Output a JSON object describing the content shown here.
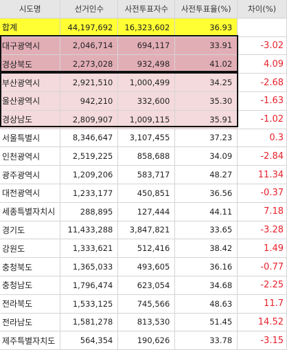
{
  "headers": [
    "시도명",
    "선거인수",
    "사전투표자수",
    "사전투표율(%)",
    "차이(%)"
  ],
  "rows": [
    {
      "name": "합계",
      "voters": "44,197,692",
      "early": "16,323,602",
      "rate": "36.93",
      "diff": "",
      "group": "total"
    },
    {
      "name": "대구광역시",
      "voters": "2,046,714",
      "early": "694,117",
      "rate": "33.91",
      "diff": "-3.02",
      "group": "g1"
    },
    {
      "name": "경상북도",
      "voters": "2,273,028",
      "early": "932,498",
      "rate": "41.02",
      "diff": "4.09",
      "group": "g1"
    },
    {
      "name": "부산광역시",
      "voters": "2,921,510",
      "early": "1,000,499",
      "rate": "34.25",
      "diff": "-2.68",
      "group": "g2"
    },
    {
      "name": "울산광역시",
      "voters": "942,210",
      "early": "332,600",
      "rate": "35.30",
      "diff": "-1.63",
      "group": "g2"
    },
    {
      "name": "경상남도",
      "voters": "2,809,907",
      "early": "1,009,115",
      "rate": "35.91",
      "diff": "-1.02",
      "group": "g2"
    },
    {
      "name": "서울특별시",
      "voters": "8,346,647",
      "early": "3,107,455",
      "rate": "37.23",
      "diff": "0.3",
      "group": ""
    },
    {
      "name": "인천광역시",
      "voters": "2,519,225",
      "early": "858,688",
      "rate": "34.09",
      "diff": "-2.84",
      "group": ""
    },
    {
      "name": "광주광역시",
      "voters": "1,209,206",
      "early": "583,717",
      "rate": "48.27",
      "diff": "11.34",
      "group": ""
    },
    {
      "name": "대전광역시",
      "voters": "1,233,177",
      "early": "450,851",
      "rate": "36.56",
      "diff": "-0.37",
      "group": ""
    },
    {
      "name": "세종특별자치시",
      "voters": "288,895",
      "early": "127,444",
      "rate": "44.11",
      "diff": "7.18",
      "group": ""
    },
    {
      "name": "경기도",
      "voters": "11,433,288",
      "early": "3,847,821",
      "rate": "33.65",
      "diff": "-3.28",
      "group": ""
    },
    {
      "name": "강원도",
      "voters": "1,333,621",
      "early": "512,416",
      "rate": "38.42",
      "diff": "1.49",
      "group": ""
    },
    {
      "name": "충청북도",
      "voters": "1,365,033",
      "early": "493,605",
      "rate": "36.16",
      "diff": "-0.77",
      "group": ""
    },
    {
      "name": "충청남도",
      "voters": "1,796,474",
      "early": "623,054",
      "rate": "34.68",
      "diff": "-2.25",
      "group": ""
    },
    {
      "name": "전라북도",
      "voters": "1,533,125",
      "early": "745,566",
      "rate": "48.63",
      "diff": "11.7",
      "group": ""
    },
    {
      "name": "전라남도",
      "voters": "1,581,278",
      "early": "813,530",
      "rate": "51.45",
      "diff": "14.52",
      "group": ""
    },
    {
      "name": "제주특별자치도",
      "voters": "564,354",
      "early": "190,626",
      "rate": "33.78",
      "diff": "-3.15",
      "group": ""
    }
  ],
  "colors": {
    "highlight_total": "#ffff33",
    "group1": "#e2aeb6",
    "group2": "#f4dadd",
    "diff_text": "#e8212b"
  }
}
